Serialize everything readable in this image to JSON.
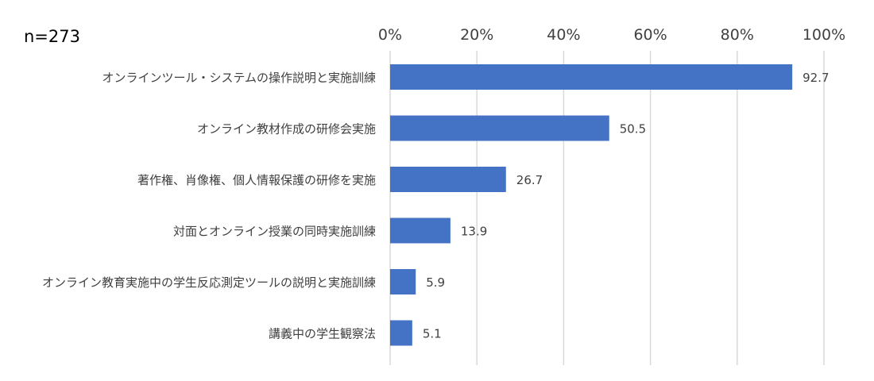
{
  "chart_data": {
    "type": "bar",
    "orientation": "horizontal",
    "sample_size_label": "n=273",
    "categories": [
      "オンラインツール・システムの操作説明と実施訓練",
      "オンライン教材作成の研修会実施",
      "著作権、肖像権、個人情報保護の研修を実施",
      "対面とオンライン授業の同時実施訓練",
      "オンライン教育実施中の学生反応測定ツールの説明と実施訓練",
      "講義中の学生観察法"
    ],
    "values": [
      92.7,
      50.5,
      26.7,
      13.9,
      5.9,
      5.1
    ],
    "value_labels": [
      "92.7",
      "50.5",
      "26.7",
      "13.9",
      "5.9",
      "5.1"
    ],
    "xlim": [
      0,
      100
    ],
    "x_ticks": [
      0,
      20,
      40,
      60,
      80,
      100
    ],
    "x_tick_labels": [
      "0%",
      "20%",
      "40%",
      "60%",
      "80%",
      "100%"
    ],
    "x_axis_position": "top",
    "grid": true,
    "legend": false,
    "title": "",
    "xlabel": "",
    "ylabel": "",
    "bar_color": "#4472c4",
    "grid_color": "#d9d9d9"
  }
}
